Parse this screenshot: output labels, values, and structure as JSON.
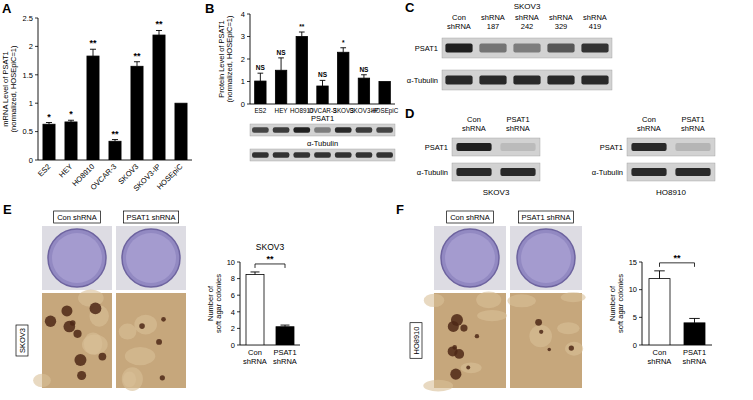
{
  "chart_data": [
    {
      "panel": "A",
      "type": "bar",
      "categories": [
        "ES2",
        "HEY",
        "HO8910",
        "OVCAR-3",
        "SKOV3",
        "SKOV3-IP",
        "HOSEpiC"
      ],
      "values": [
        0.63,
        0.67,
        1.83,
        0.33,
        1.65,
        2.2,
        1
      ],
      "errors": [
        0.03,
        0.03,
        0.12,
        0.03,
        0.08,
        0.08,
        null
      ],
      "significance": [
        "*",
        "*",
        "**",
        "**",
        "**",
        "**",
        null
      ],
      "color": "#000000",
      "ylabel": "mRNA Level of PSAT1 (normalized, HOSEpiC=1)",
      "ylim": [
        0,
        2.5
      ],
      "yticks": [
        0,
        0.5,
        1,
        1.5,
        2,
        2.5
      ]
    },
    {
      "panel": "B",
      "type": "bar",
      "categories": [
        "ES2",
        "HEY",
        "HO8910",
        "OVCAR-3",
        "SKOV3",
        "SKOV3-IP",
        "HOSEpiC"
      ],
      "values": [
        1.02,
        1.5,
        3.0,
        0.8,
        2.3,
        1.15,
        1
      ],
      "errors": [
        0.35,
        0.55,
        0.2,
        0.25,
        0.2,
        0.15,
        null
      ],
      "significance": [
        "NS",
        "NS",
        "**",
        "NS",
        "*",
        "NS",
        null
      ],
      "color": "#000000",
      "ylabel": "Protein Level of PSAT1 (normalized, HOSEpiC=1)",
      "ylim": [
        0,
        4
      ],
      "yticks": [
        0,
        1,
        2,
        3,
        4
      ]
    },
    {
      "type": "bar",
      "title": "SKOV3",
      "categories": [
        "Con shRNA",
        "PSAT1 shRNA"
      ],
      "values": [
        8.5,
        2.2
      ],
      "errors": [
        0.3,
        0.2
      ],
      "significance": "**",
      "colors": [
        "#ffffff",
        "#000000"
      ],
      "ylabel": "Number of soft agar colonies",
      "ylim": [
        0,
        10
      ],
      "yticks": [
        0,
        2,
        4,
        6,
        8,
        10
      ]
    },
    {
      "type": "bar",
      "categories": [
        "Con shRNA",
        "PSAT1 shRNA"
      ],
      "values": [
        12,
        4
      ],
      "errors": [
        1.4,
        0.8
      ],
      "significance": "**",
      "colors": [
        "#ffffff",
        "#000000"
      ],
      "ylabel": "Number of soft agar colonies",
      "ylim": [
        0,
        15
      ],
      "yticks": [
        0,
        5,
        10,
        15
      ]
    }
  ],
  "blots": [
    {
      "rows": [
        "PSAT1",
        "α-Tubulin"
      ]
    },
    {
      "panel": "C",
      "title": "SKOV3",
      "lanes": [
        "Con shRNA",
        "shRNA 187",
        "shRNA 242",
        "shRNA 329",
        "shRNA 419"
      ],
      "rows": [
        "PSAT1",
        "α-Tubulin"
      ]
    },
    {
      "panel": "D",
      "lanes": [
        "Con shRNA",
        "PSAT1 shRNA"
      ],
      "rows": [
        "PSAT1",
        "α-Tubulin"
      ],
      "caption": "SKOV3"
    },
    {
      "lanes": [
        "Con shRNA",
        "PSAT1 shRNA"
      ],
      "rows": [
        "PSAT1",
        "α-Tubulin"
      ],
      "caption": "HO8910"
    }
  ],
  "colony_images": [
    {
      "panel": "E",
      "cell_line": "SKOV3",
      "columns": [
        "Con shRNA",
        "PSAT1 shRNA"
      ]
    },
    {
      "panel": "F",
      "cell_line": "HO8910",
      "columns": [
        "Con shRNA",
        "PSAT1 shRNA"
      ]
    }
  ]
}
